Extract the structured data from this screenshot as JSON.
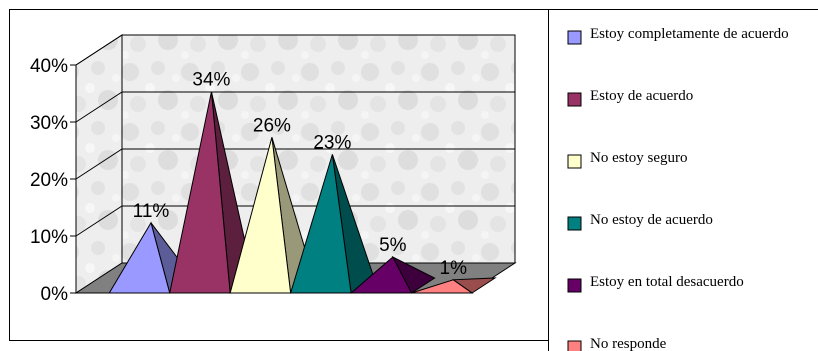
{
  "chart_data": {
    "type": "bar",
    "style": "3d-pyramid",
    "title": "",
    "xlabel": "",
    "ylabel": "",
    "ylim": [
      0,
      40
    ],
    "yticks": [
      "0%",
      "10%",
      "20%",
      "30%",
      "40%"
    ],
    "grid": true,
    "legend_position": "right",
    "categories": [
      "Estoy completamente de acuerdo",
      "Estoy de acuerdo",
      "No estoy seguro",
      "No estoy de acuerdo",
      "Estoy en total desacuerdo",
      "No responde"
    ],
    "values": [
      11,
      34,
      26,
      23,
      5,
      1
    ],
    "data_labels": [
      "11%",
      "34%",
      "26%",
      "23%",
      "5%",
      "1%"
    ],
    "colors": [
      "#9999ff",
      "#993366",
      "#ffffcc",
      "#008080",
      "#660066",
      "#ff8080"
    ],
    "side_colors": [
      "#5c5c99",
      "#5c1f3d",
      "#99997a",
      "#004d4d",
      "#3d003d",
      "#994d4d"
    ]
  }
}
